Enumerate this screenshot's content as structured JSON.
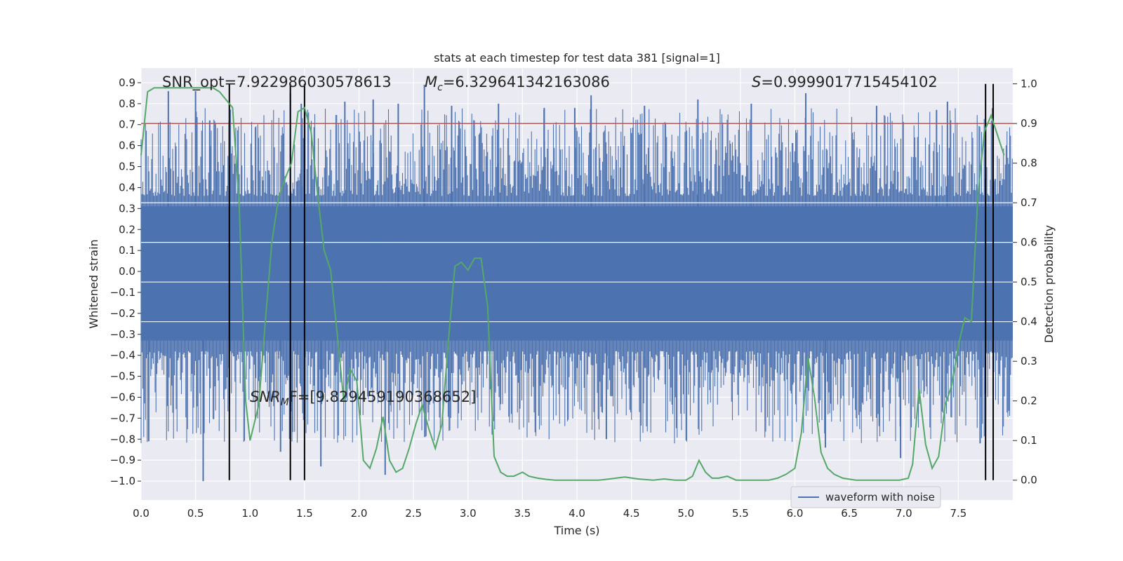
{
  "chart_data": {
    "type": "line",
    "title": "stats at each timestep for test data 381 [signal=1]",
    "xlabel": "Time (s)",
    "ylabel_left": "Whitened strain",
    "ylabel_right": "Detection probability",
    "xlim": [
      0.0,
      8.0
    ],
    "ylim_left": [
      -1.09,
      0.97
    ],
    "ylim_right": [
      -0.05,
      1.04
    ],
    "x_ticks": [
      "0.0",
      "0.5",
      "1.0",
      "1.5",
      "2.0",
      "2.5",
      "3.0",
      "3.5",
      "4.0",
      "4.5",
      "5.0",
      "5.5",
      "6.0",
      "6.5",
      "7.0",
      "7.5"
    ],
    "y_left_ticks": [
      "0.9",
      "0.8",
      "0.7",
      "0.6",
      "0.5",
      "0.4",
      "0.3",
      "0.2",
      "0.1",
      "0.0",
      "−0.1",
      "−0.2",
      "−0.3",
      "−0.4",
      "−0.5",
      "−0.6",
      "−0.7",
      "−0.8",
      "−0.9",
      "−1.0"
    ],
    "y_right_ticks": [
      "1.0",
      "0.9",
      "0.8",
      "0.7",
      "0.6",
      "0.5",
      "0.4",
      "0.3",
      "0.2",
      "0.1",
      "0.0"
    ],
    "threshold": 0.9,
    "markers_x": [
      0.81,
      1.37,
      1.5,
      7.75,
      7.82
    ],
    "waveform": {
      "name": "waveform with noise",
      "core_band": [
        -0.33,
        0.31
      ],
      "spikes": [
        {
          "x": 0.25,
          "y": 0.86
        },
        {
          "x": 0.5,
          "y": 0.86
        },
        {
          "x": 0.57,
          "y": -1.0
        },
        {
          "x": 0.07,
          "y": -0.81
        },
        {
          "x": 0.63,
          "y": 0.72
        },
        {
          "x": 1.28,
          "y": -0.86
        },
        {
          "x": 1.37,
          "y": 0.85
        },
        {
          "x": 1.47,
          "y": 0.8
        },
        {
          "x": 1.65,
          "y": -0.93
        },
        {
          "x": 1.87,
          "y": 0.81
        },
        {
          "x": 2.13,
          "y": 0.82
        },
        {
          "x": 2.24,
          "y": -0.97
        },
        {
          "x": 2.36,
          "y": 0.8
        },
        {
          "x": 2.6,
          "y": 0.89
        },
        {
          "x": 2.85,
          "y": 0.79
        },
        {
          "x": 3.28,
          "y": 0.8
        },
        {
          "x": 3.7,
          "y": 0.78
        },
        {
          "x": 3.98,
          "y": 0.78
        },
        {
          "x": 4.13,
          "y": 0.84
        },
        {
          "x": 4.27,
          "y": -0.8
        },
        {
          "x": 4.62,
          "y": 0.79
        },
        {
          "x": 5.11,
          "y": 0.82
        },
        {
          "x": 5.6,
          "y": 0.8
        },
        {
          "x": 6.1,
          "y": 0.85
        },
        {
          "x": 6.28,
          "y": -0.84
        },
        {
          "x": 6.75,
          "y": 0.79
        },
        {
          "x": 6.97,
          "y": -0.89
        },
        {
          "x": 7.3,
          "y": 0.77
        },
        {
          "x": 7.4,
          "y": 0.81
        },
        {
          "x": 7.7,
          "y": -0.82
        }
      ]
    },
    "probability": {
      "x": [
        0.0,
        0.06,
        0.12,
        0.18,
        0.24,
        0.3,
        0.36,
        0.42,
        0.48,
        0.54,
        0.6,
        0.66,
        0.72,
        0.78,
        0.84,
        0.9,
        0.96,
        1.0,
        1.08,
        1.14,
        1.2,
        1.26,
        1.32,
        1.38,
        1.44,
        1.5,
        1.56,
        1.62,
        1.68,
        1.74,
        1.8,
        1.86,
        1.92,
        1.98,
        2.04,
        2.1,
        2.16,
        2.22,
        2.28,
        2.34,
        2.4,
        2.46,
        2.52,
        2.58,
        2.64,
        2.7,
        2.76,
        2.82,
        2.88,
        2.94,
        3.0,
        3.06,
        3.12,
        3.18,
        3.24,
        3.3,
        3.36,
        3.42,
        3.5,
        3.56,
        3.64,
        3.72,
        3.8,
        3.9,
        4.0,
        4.1,
        4.2,
        4.3,
        4.44,
        4.56,
        4.7,
        4.8,
        4.9,
        5.0,
        5.06,
        5.12,
        5.18,
        5.24,
        5.3,
        5.38,
        5.46,
        5.56,
        5.66,
        5.76,
        5.84,
        5.92,
        6.0,
        6.06,
        6.12,
        6.18,
        6.24,
        6.3,
        6.36,
        6.44,
        6.56,
        6.7,
        6.84,
        6.96,
        7.04,
        7.08,
        7.14,
        7.2,
        7.26,
        7.32,
        7.38,
        7.44,
        7.5,
        7.56,
        7.62,
        7.68,
        7.74,
        7.8,
        7.86,
        7.92
      ],
      "y": [
        0.82,
        0.98,
        0.99,
        0.99,
        0.99,
        0.99,
        0.99,
        0.99,
        0.99,
        0.99,
        0.99,
        0.99,
        0.98,
        0.96,
        0.94,
        0.7,
        0.2,
        0.1,
        0.19,
        0.4,
        0.6,
        0.71,
        0.76,
        0.8,
        0.93,
        0.94,
        0.88,
        0.72,
        0.58,
        0.53,
        0.37,
        0.2,
        0.28,
        0.25,
        0.05,
        0.03,
        0.08,
        0.16,
        0.05,
        0.02,
        0.03,
        0.08,
        0.14,
        0.19,
        0.13,
        0.08,
        0.14,
        0.35,
        0.54,
        0.55,
        0.53,
        0.56,
        0.56,
        0.44,
        0.06,
        0.02,
        0.01,
        0.01,
        0.02,
        0.01,
        0.005,
        0.002,
        0.0,
        0.0,
        0.0,
        0.0,
        0.0,
        0.003,
        0.008,
        0.003,
        0.0,
        0.003,
        0.0,
        0.0,
        0.01,
        0.05,
        0.02,
        0.005,
        0.005,
        0.01,
        0.0,
        0.0,
        0.0,
        0.0,
        0.005,
        0.015,
        0.03,
        0.12,
        0.31,
        0.21,
        0.07,
        0.03,
        0.015,
        0.005,
        0.0,
        0.0,
        0.0,
        0.0,
        0.005,
        0.04,
        0.23,
        0.09,
        0.03,
        0.06,
        0.19,
        0.24,
        0.34,
        0.41,
        0.4,
        0.72,
        0.88,
        0.92,
        0.87,
        0.82
      ]
    },
    "legend": {
      "entries": [
        "waveform with noise"
      ],
      "location": "lower-right"
    },
    "annotations": {
      "snr_opt": "SNR_opt=7.922986030578613",
      "mc_symbol": "M",
      "mc_sub": "c",
      "mc_value": "=6.329641342163086",
      "s_symbol": "S",
      "s_value": "=0.9999017715454102",
      "snr_mf_prefix": "SNR",
      "snr_mf_sub": "M",
      "snr_mf_suffix": "F=[9.82945919036865",
      "snr_mf_end": "2]"
    },
    "colors": {
      "background": "#eaeaf2",
      "grid": "#ffffff",
      "waveform": "#4c72b0",
      "probability": "#55a868",
      "threshold": "#c44e52",
      "markers": "#000000"
    }
  }
}
